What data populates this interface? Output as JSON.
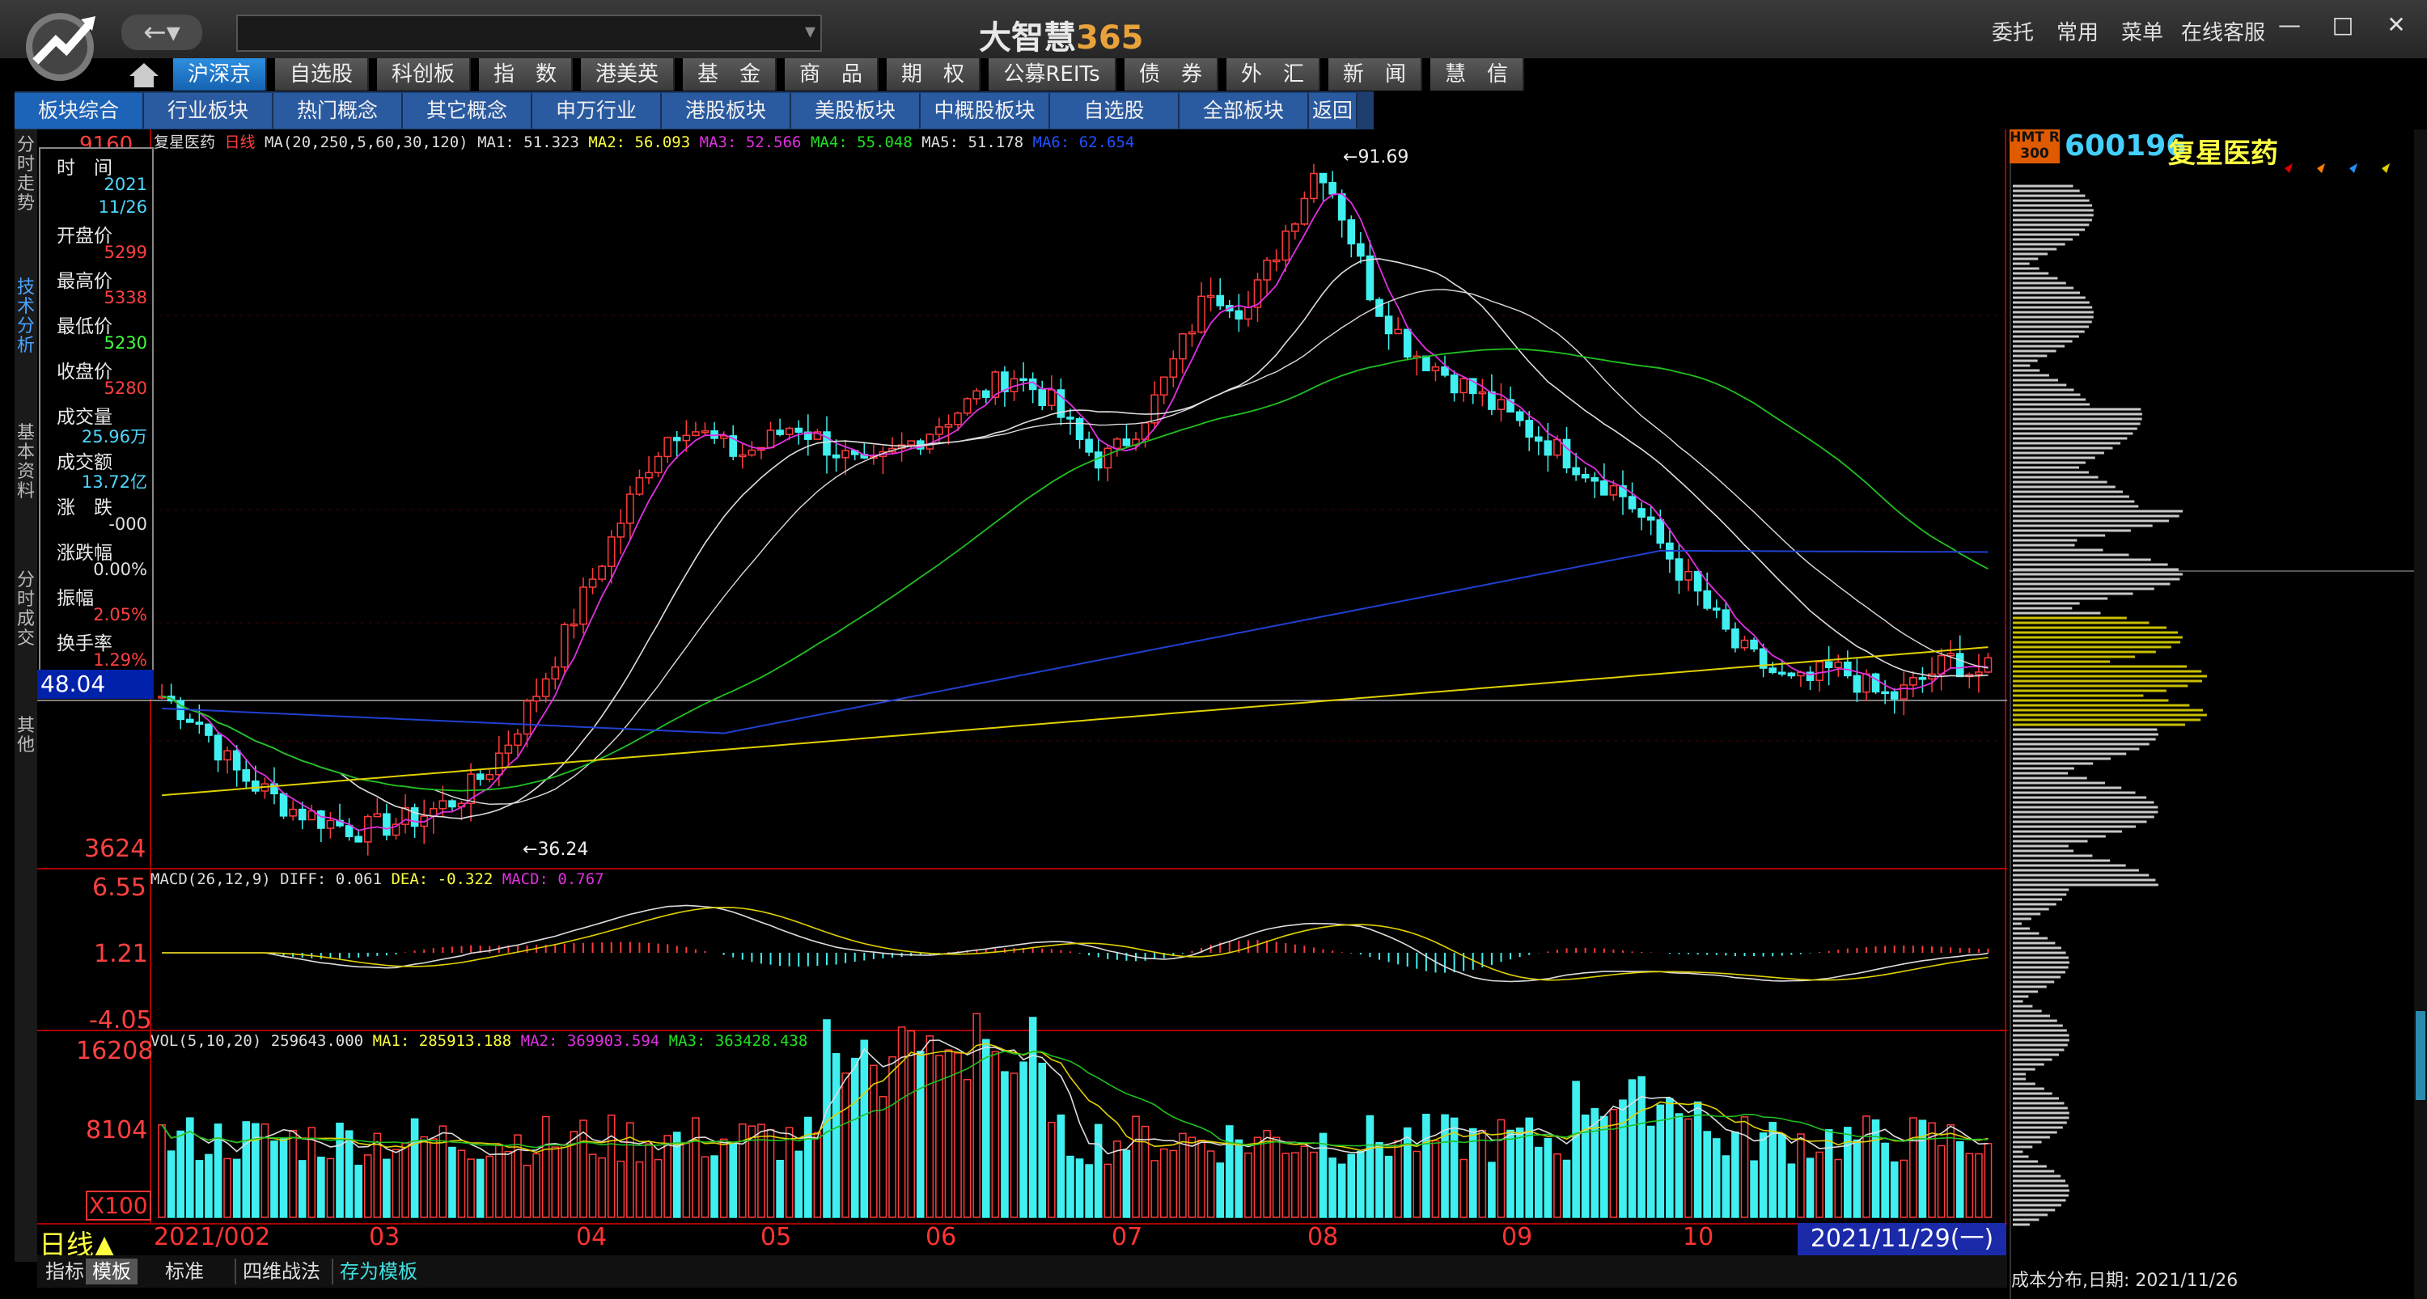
{
  "app": {
    "title_main": "大智慧",
    "title_num": "365",
    "nav": "←▾"
  },
  "top_menu": [
    "委托",
    "常用",
    "菜单",
    "在线客服"
  ],
  "window_controls": [
    "—",
    "□",
    "✕"
  ],
  "main_tabs": [
    {
      "label": "沪深京",
      "active": true,
      "more": true
    },
    {
      "label": "自选股",
      "active": false,
      "more": false
    },
    {
      "label": "科创板",
      "active": false,
      "more": false
    },
    {
      "label": "指　数",
      "active": false,
      "more": false
    },
    {
      "label": "港美英",
      "active": false,
      "more": true
    },
    {
      "label": "基　金",
      "active": false,
      "more": false
    },
    {
      "label": "商　品",
      "active": false,
      "more": true
    },
    {
      "label": "期　权",
      "active": false,
      "more": false
    },
    {
      "label": "公募REITs",
      "active": false,
      "more": false
    },
    {
      "label": "债　券",
      "active": false,
      "more": false
    },
    {
      "label": "外　汇",
      "active": false,
      "more": false
    },
    {
      "label": "新　闻",
      "active": false,
      "more": true
    },
    {
      "label": "慧　信",
      "active": false,
      "more": false
    }
  ],
  "sub_tabs": [
    "板块综合",
    "行业板块",
    "热门概念",
    "其它概念",
    "申万行业",
    "港股板块",
    "美股板块",
    "中概股板块",
    "自选股",
    "全部板块",
    "返回"
  ],
  "left_tabs": [
    {
      "label": "分时走势",
      "active": false
    },
    {
      "label": "技术分析",
      "active": true
    },
    {
      "label": "基本资料",
      "active": false
    },
    {
      "label": "分时成交",
      "active": false
    },
    {
      "label": "其他",
      "active": false
    }
  ],
  "info_panel": [
    {
      "label": "时　间",
      "value": "",
      "color": "#4fd8ff"
    },
    {
      "label": "",
      "value": "2021",
      "color": "#4fd8ff"
    },
    {
      "label": "",
      "value": "11/26",
      "color": "#4fd8ff"
    },
    {
      "label": "开盘价",
      "value": "5299",
      "color": "#ff4040"
    },
    {
      "label": "最高价",
      "value": "5338",
      "color": "#ff4040"
    },
    {
      "label": "最低价",
      "value": "5230",
      "color": "#40ff40"
    },
    {
      "label": "收盘价",
      "value": "5280",
      "color": "#ff4040"
    },
    {
      "label": "成交量",
      "value": "25.96万",
      "color": "#4fd8ff"
    },
    {
      "label": "成交额",
      "value": "13.72亿",
      "color": "#4fd8ff"
    },
    {
      "label": "涨　跌",
      "value": "-000",
      "color": "#e0e0e0"
    },
    {
      "label": "涨跌幅",
      "value": "0.00%",
      "color": "#e0e0e0"
    },
    {
      "label": "振幅",
      "value": "2.05%",
      "color": "#ff4040"
    },
    {
      "label": "换手率",
      "value": "1.29%",
      "color": "#ff4040"
    }
  ],
  "price_box": "48.04",
  "main_chart": {
    "stock": "复星医药",
    "period": "日线",
    "ma_header": "MA(20,250,5,60,30,120)",
    "ma1": "MA1: 51.323",
    "ma2": "MA2: 56.093",
    "ma3": "MA3: 52.566",
    "ma4": "MA4: 55.048",
    "ma5": "MA5: 51.178",
    "ma6": "MA6: 62.654",
    "high_label": "91.69",
    "low_label": "36.24",
    "y_top": "9160",
    "y_bottom": "3624"
  },
  "macd": {
    "header": "MACD(26,12,9)",
    "diff": "DIFF: 0.061",
    "dea": "DEA: -0.322",
    "macd": "MACD: 0.767",
    "y_labels": [
      "6.55",
      "1.21",
      "-4.05"
    ]
  },
  "vol": {
    "header": "VOL(5,10,20)",
    "value": "259643.000",
    "ma1": "MA1: 285913.188",
    "ma2": "MA2: 369903.594",
    "ma3": "MA3: 363428.438",
    "y_labels": [
      "16208",
      "8104",
      "X100"
    ]
  },
  "x_axis": {
    "period_label": "日线▲",
    "labels": [
      "2021/0",
      "02",
      "03",
      "04",
      "05",
      "06",
      "07",
      "08",
      "09",
      "10"
    ],
    "current_date": "2021/11/29(一)"
  },
  "bottom_tabs": [
    "指标",
    "模板",
    "标准",
    "四维战法",
    "存为模板"
  ],
  "right_panel": {
    "badge": "HMT R 300",
    "code": "600196",
    "name": "复星医药",
    "cost_label": "成本分布,日期: 2021/11/26"
  },
  "colors": {
    "up": "#ff3b3b",
    "down": "#40f0f0",
    "ma_white": "#dddddd",
    "ma_yellow": "#e0d000",
    "ma_purple": "#e030e0",
    "ma_green": "#20c020",
    "ma_blue": "#2040d0"
  }
}
